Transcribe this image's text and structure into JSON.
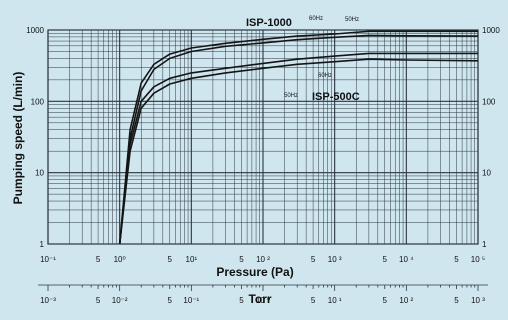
{
  "chart_data": {
    "type": "line",
    "xscale": "log",
    "yscale": "log",
    "xlim": [
      0.1,
      100000
    ],
    "ylim": [
      1,
      1000
    ],
    "xlabel": "Pressure (Pa)",
    "ylabel": "Pumping speed (L/min)",
    "x2label": "Torr",
    "grid": true,
    "series": [
      {
        "name": "ISP-1000 50Hz",
        "x": [
          1.0,
          1.4,
          2.0,
          3.0,
          5.0,
          10,
          30,
          100,
          300,
          1000,
          3000,
          10000,
          100000
        ],
        "y": [
          1,
          40,
          180,
          330,
          460,
          560,
          650,
          740,
          820,
          880,
          960,
          960,
          960
        ]
      },
      {
        "name": "ISP-1000 60Hz",
        "x": [
          1.0,
          1.4,
          2.0,
          3.0,
          5.0,
          10,
          30,
          100,
          300,
          1000,
          3000,
          10000,
          100000
        ],
        "y": [
          1,
          30,
          140,
          280,
          400,
          500,
          590,
          660,
          730,
          790,
          840,
          830,
          820
        ]
      },
      {
        "name": "ISP-500C 60Hz",
        "x": [
          1.0,
          1.4,
          2.0,
          3.0,
          5.0,
          10,
          30,
          100,
          300,
          1000,
          3000,
          10000,
          100000
        ],
        "y": [
          1,
          25,
          100,
          160,
          210,
          250,
          290,
          340,
          390,
          430,
          470,
          470,
          470
        ]
      },
      {
        "name": "ISP-500C 50Hz",
        "x": [
          1.0,
          1.4,
          2.0,
          3.0,
          5.0,
          10,
          30,
          100,
          300,
          1000,
          3000,
          10000,
          100000
        ],
        "y": [
          1,
          20,
          80,
          130,
          175,
          210,
          250,
          290,
          330,
          360,
          390,
          380,
          370
        ]
      }
    ],
    "annotations": [
      "ISP-1000",
      "ISP-500C",
      "60Hz",
      "50Hz",
      "60Hz",
      "50Hz"
    ],
    "y_ticks": [
      "1",
      "10",
      "100",
      "1000"
    ],
    "y_ticks_right": [
      "1",
      "10",
      "100",
      "1000"
    ],
    "x_ticks": [
      {
        "v": 0.1,
        "t": "10⁻¹"
      },
      {
        "v": 0.5,
        "t": "5"
      },
      {
        "v": 1,
        "t": "10⁰"
      },
      {
        "v": 5,
        "t": "5"
      },
      {
        "v": 10,
        "t": "10¹"
      },
      {
        "v": 50,
        "t": "5"
      },
      {
        "v": 100,
        "t": "10 ²"
      },
      {
        "v": 500,
        "t": "5"
      },
      {
        "v": 1000,
        "t": "10 ³"
      },
      {
        "v": 5000,
        "t": "5"
      },
      {
        "v": 10000,
        "t": "10 ⁴"
      },
      {
        "v": 50000,
        "t": "5"
      },
      {
        "v": 100000,
        "t": "10 ⁵"
      }
    ],
    "torr_ticks": [
      {
        "v": 0.001,
        "t": "10⁻³"
      },
      {
        "v": 0.005,
        "t": "5"
      },
      {
        "v": 0.01,
        "t": "10⁻²"
      },
      {
        "v": 0.05,
        "t": "5"
      },
      {
        "v": 0.1,
        "t": "10⁻¹"
      },
      {
        "v": 0.5,
        "t": "5"
      },
      {
        "v": 1,
        "t": "10 ⁰"
      },
      {
        "v": 5,
        "t": "5"
      },
      {
        "v": 10,
        "t": "10 ¹"
      },
      {
        "v": 50,
        "t": "5"
      },
      {
        "v": 100,
        "t": "10 ²"
      },
      {
        "v": 500,
        "t": "5"
      },
      {
        "v": 1000,
        "t": "10 ³"
      }
    ],
    "colors": {
      "background": "#cfe6ef",
      "grid": "#2c3540",
      "line": "#151515"
    }
  }
}
